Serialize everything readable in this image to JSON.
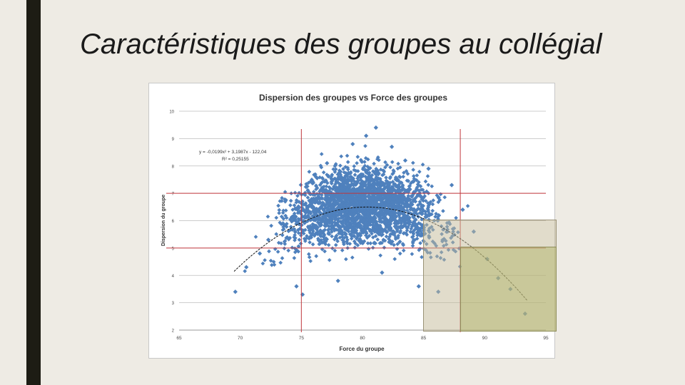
{
  "slide": {
    "title": "Caractéristiques des groupes au collégial"
  },
  "colors": {
    "points": "#4f81bd",
    "trend": "#111111",
    "ref_lines": "#c0363c",
    "band_light": "#c4ba98",
    "band_dark": "#acb060"
  },
  "chart_data": {
    "type": "scatter",
    "title": "Dispersion des groupes vs Force des groupes",
    "xlabel": "Force du groupe",
    "ylabel": "Dispersion du groupe",
    "xlim": [
      65,
      95
    ],
    "ylim": [
      2,
      10
    ],
    "x_ticks": [
      "65",
      "70",
      "75",
      "80",
      "85",
      "90",
      "95"
    ],
    "y_ticks": [
      "2",
      "3",
      "4",
      "5",
      "6",
      "7",
      "8",
      "9",
      "10"
    ],
    "grid": "horizontal",
    "trendline": {
      "type": "polynomial",
      "a": -0.0199,
      "b": 3.1987,
      "c": -122.04,
      "x_range": [
        69.5,
        93.5
      ]
    },
    "equation_text": "y = -0,0199x² + 3,1987x - 122,04",
    "r2_text": "R² = 0,25155",
    "reference_lines": {
      "vertical": [
        75,
        88
      ],
      "horizontal": [
        5,
        7
      ]
    },
    "highlight_regions": [
      {
        "name": "light",
        "x": [
          85,
          95
        ],
        "y": [
          2,
          6
        ]
      },
      {
        "name": "dark",
        "x": [
          88,
          95
        ],
        "y": [
          2,
          5
        ]
      }
    ],
    "points_sample": [
      [
        69.6,
        3.4
      ],
      [
        70.5,
        4.3
      ],
      [
        71.6,
        4.8
      ],
      [
        72.3,
        5.3
      ],
      [
        73.5,
        5.9
      ],
      [
        74.6,
        3.6
      ],
      [
        75.1,
        3.3
      ],
      [
        76.2,
        7.6
      ],
      [
        77.1,
        8.1
      ],
      [
        78.0,
        3.8
      ],
      [
        79.2,
        8.8
      ],
      [
        80.3,
        9.1
      ],
      [
        81.1,
        9.4
      ],
      [
        81.6,
        4.1
      ],
      [
        82.4,
        8.7
      ],
      [
        83.5,
        8.2
      ],
      [
        84.6,
        3.6
      ],
      [
        85.4,
        7.9
      ],
      [
        86.2,
        3.4
      ],
      [
        87.3,
        7.3
      ],
      [
        88.2,
        6.4
      ],
      [
        89.1,
        5.6
      ],
      [
        90.2,
        4.6
      ],
      [
        91.1,
        3.9
      ],
      [
        92.1,
        3.5
      ],
      [
        93.3,
        2.6
      ]
    ]
  }
}
